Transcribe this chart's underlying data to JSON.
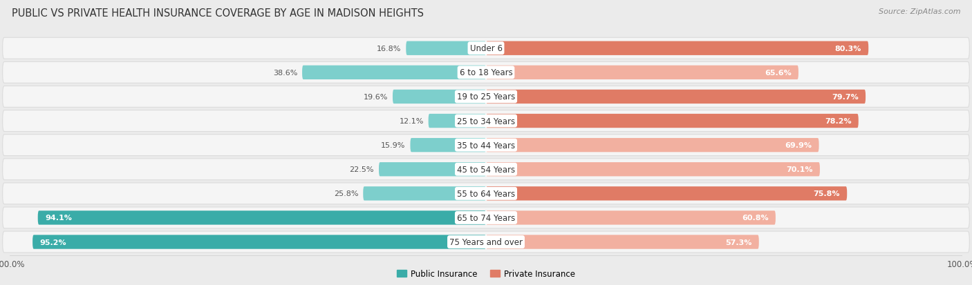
{
  "title": "PUBLIC VS PRIVATE HEALTH INSURANCE COVERAGE BY AGE IN MADISON HEIGHTS",
  "source": "Source: ZipAtlas.com",
  "categories": [
    "Under 6",
    "6 to 18 Years",
    "19 to 25 Years",
    "25 to 34 Years",
    "35 to 44 Years",
    "45 to 54 Years",
    "55 to 64 Years",
    "65 to 74 Years",
    "75 Years and over"
  ],
  "public_values": [
    16.8,
    38.6,
    19.6,
    12.1,
    15.9,
    22.5,
    25.8,
    94.1,
    95.2
  ],
  "private_values": [
    80.3,
    65.6,
    79.7,
    78.2,
    69.9,
    70.1,
    75.8,
    60.8,
    57.3
  ],
  "public_color_high": "#3aaca8",
  "public_color_low": "#7dcfcc",
  "private_color_high": "#e07b65",
  "private_color_low": "#f2b0a0",
  "bg_color": "#ebebeb",
  "row_bg_color": "#f5f5f5",
  "row_sep_color": "#dcdcdc",
  "title_fontsize": 10.5,
  "label_fontsize": 8.5,
  "value_fontsize": 8,
  "source_fontsize": 8,
  "max_val": 100.0,
  "legend_public": "Public Insurance",
  "legend_private": "Private Insurance",
  "high_threshold_public": 50,
  "high_threshold_private": 75
}
